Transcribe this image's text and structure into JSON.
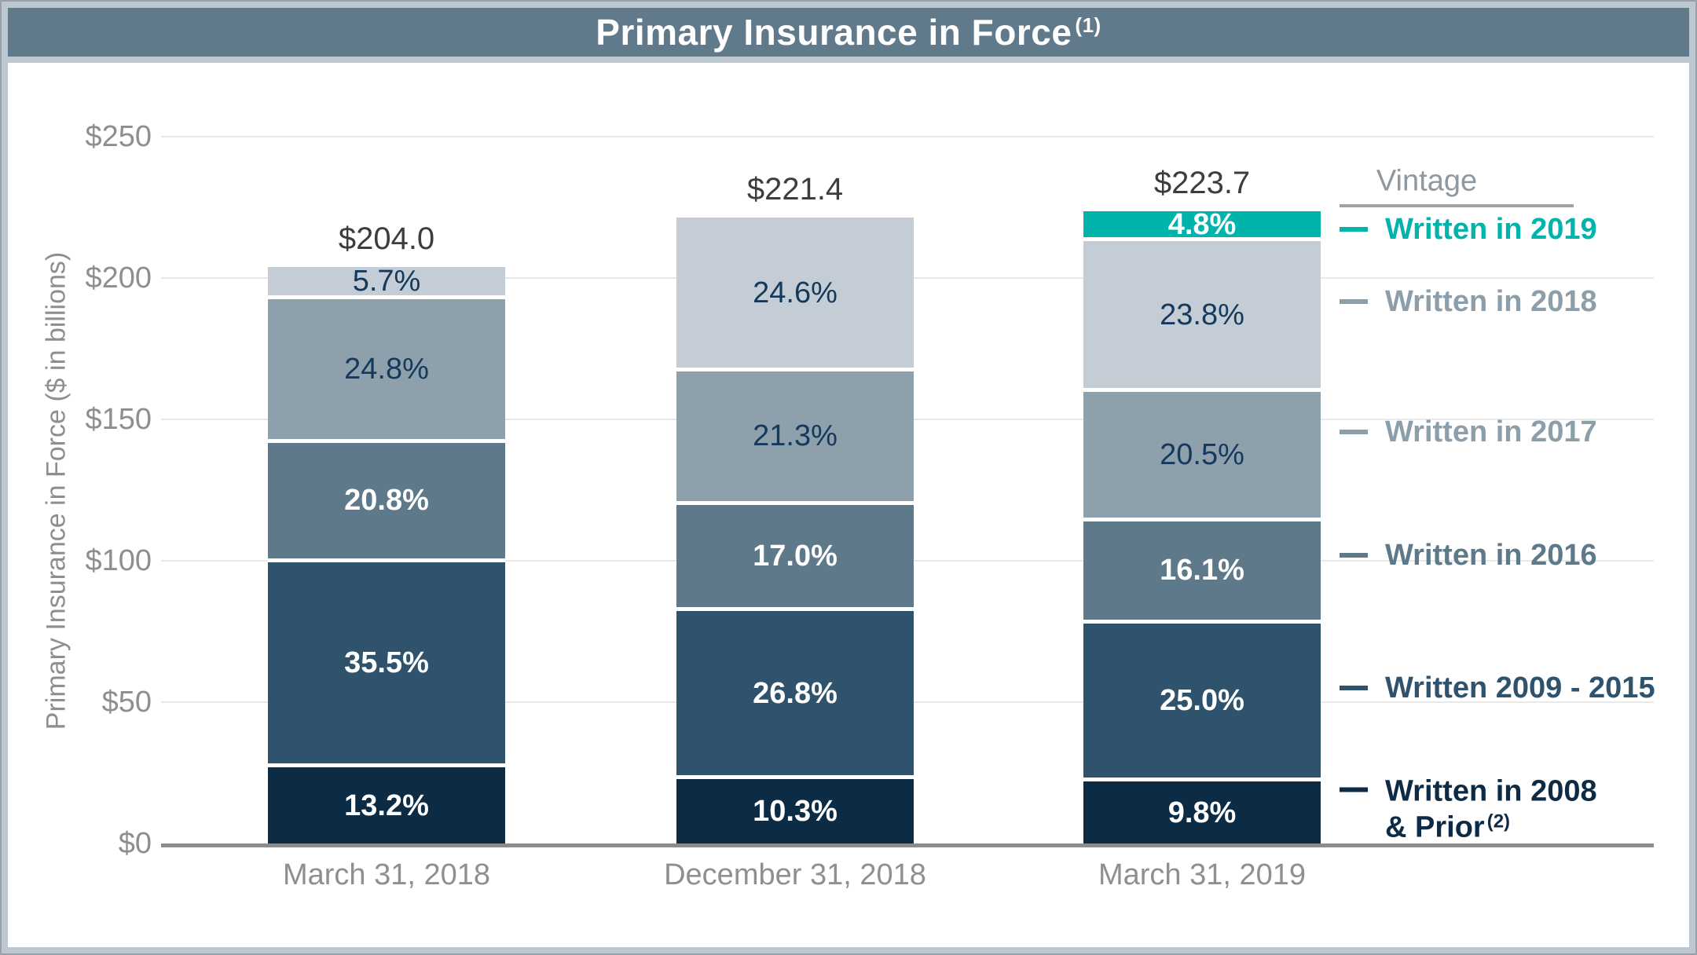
{
  "header": {
    "title": "Primary Insurance in Force",
    "superscript": "(1)"
  },
  "legend": {
    "title": "Vintage",
    "entries": [
      {
        "lines": [
          "Written in 2019"
        ],
        "sup": "",
        "color": "#00b3ab"
      },
      {
        "lines": [
          "Written in 2018"
        ],
        "sup": "",
        "color": "#8d9eab"
      },
      {
        "lines": [
          "Written in 2017"
        ],
        "sup": "",
        "color": "#8d9eab"
      },
      {
        "lines": [
          "Written in 2016"
        ],
        "sup": "",
        "color": "#5e7989"
      },
      {
        "lines": [
          "Written 2009 - 2015"
        ],
        "sup": "",
        "color": "#2f536d"
      },
      {
        "lines": [
          "Written in 2008",
          "& Prior"
        ],
        "sup": "(2)",
        "color": "#0d2b45"
      }
    ]
  },
  "chart_data": {
    "type": "bar",
    "stacked": true,
    "title": "Primary Insurance in Force (1)",
    "ylabel": "Primary Insurance in Force ($ in billions)",
    "unit": "$ in billions",
    "ylim": [
      0,
      250
    ],
    "ytick_step": 50,
    "yticks": [
      "$0",
      "$50",
      "$100",
      "$150",
      "$200",
      "$250"
    ],
    "grid": true,
    "legend_position": "right",
    "categories": [
      "March 31, 2018",
      "December 31, 2018",
      "March 31, 2019"
    ],
    "totals": [
      204.0,
      221.4,
      223.7
    ],
    "total_labels": [
      "$204.0",
      "$221.4",
      "$223.7"
    ],
    "series": [
      {
        "name": "Written in 2008 & Prior",
        "values_pct": [
          13.2,
          10.3,
          9.8
        ],
        "labels": [
          "13.2%",
          "10.3%",
          "9.8%"
        ],
        "fill": "#0c2b45",
        "label_color": "#ffffff",
        "label_bold": true
      },
      {
        "name": "Written 2009 - 2015",
        "values_pct": [
          35.5,
          26.8,
          25.0
        ],
        "labels": [
          "35.5%",
          "26.8%",
          "25.0%"
        ],
        "fill": "#2f536d",
        "label_color": "#ffffff",
        "label_bold": true
      },
      {
        "name": "Written in 2016",
        "values_pct": [
          20.8,
          17.0,
          16.1
        ],
        "labels": [
          "20.8%",
          "17.0%",
          "16.1%"
        ],
        "fill": "#5e7989",
        "label_color": "#ffffff",
        "label_bold": true
      },
      {
        "name": "Written in 2017",
        "values_pct": [
          24.8,
          21.3,
          20.5
        ],
        "labels": [
          "24.8%",
          "21.3%",
          "20.5%"
        ],
        "fill": "#8ea0ac",
        "label_color": "#14395c",
        "label_bold": false
      },
      {
        "name": "Written in 2018",
        "values_pct": [
          5.7,
          24.6,
          23.8
        ],
        "labels": [
          "5.7%",
          "24.6%",
          "23.8%"
        ],
        "fill": "#c4cdd5",
        "label_color": "#14395c",
        "label_bold": false
      },
      {
        "name": "Written in 2019",
        "values_pct": [
          null,
          null,
          4.8
        ],
        "labels": [
          null,
          null,
          "4.8%"
        ],
        "fill": "#00b3ab",
        "label_color": "#ffffff",
        "label_bold": true
      }
    ]
  },
  "colors": {
    "header_bg": "#60798b",
    "frame": "#bdc7d0",
    "frame_outline": "#97a2ad",
    "grid": "#e9e9e9",
    "axis_line": "#8c8c8c",
    "tick_text": "#8e8e8e",
    "axis_title_text": "#8e8e8e",
    "total_text": "#3d3d3d",
    "xlabel_text": "#8f8f8f",
    "legend_title_text": "#8e98a1",
    "legend_rule": "#a2a2a2",
    "segment_gap": "#ffffff"
  }
}
